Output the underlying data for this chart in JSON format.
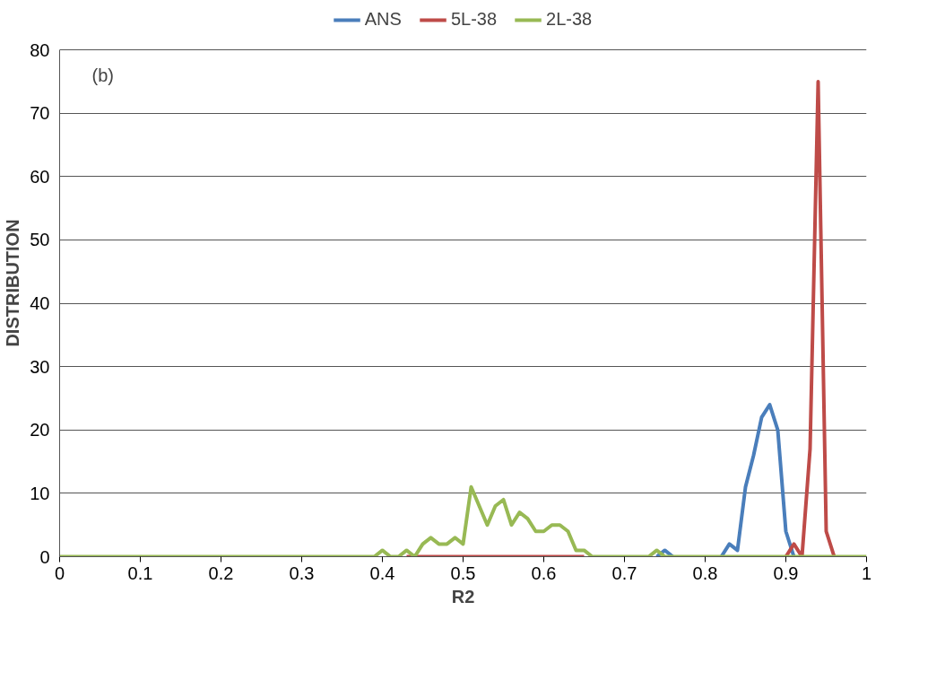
{
  "chart_data": {
    "type": "line",
    "xlabel": "R2",
    "ylabel": "DISTRIBUTION",
    "annotations": [
      "(b)"
    ],
    "x": [
      0,
      0.01,
      0.02,
      0.03,
      0.04,
      0.05,
      0.06,
      0.07,
      0.08,
      0.09,
      0.1,
      0.11,
      0.12,
      0.13,
      0.14,
      0.15,
      0.16,
      0.17,
      0.18,
      0.19,
      0.2,
      0.21,
      0.22,
      0.23,
      0.24,
      0.25,
      0.26,
      0.27,
      0.28,
      0.29,
      0.3,
      0.31,
      0.32,
      0.33,
      0.34,
      0.35,
      0.36,
      0.37,
      0.38,
      0.39,
      0.4,
      0.41,
      0.42,
      0.43,
      0.44,
      0.45,
      0.46,
      0.47,
      0.48,
      0.49,
      0.5,
      0.51,
      0.52,
      0.53,
      0.54,
      0.55,
      0.56,
      0.57,
      0.58,
      0.59,
      0.6,
      0.61,
      0.62,
      0.63,
      0.64,
      0.65,
      0.66,
      0.67,
      0.68,
      0.69,
      0.7,
      0.71,
      0.72,
      0.73,
      0.74,
      0.75,
      0.76,
      0.77,
      0.78,
      0.79,
      0.8,
      0.81,
      0.82,
      0.83,
      0.84,
      0.85,
      0.86,
      0.87,
      0.88,
      0.89,
      0.9,
      0.91,
      0.92,
      0.93,
      0.94,
      0.95,
      0.96,
      0.97,
      0.98,
      0.99,
      1
    ],
    "series": [
      {
        "name": "ANS",
        "color": "#4a7ebb",
        "values": [
          null,
          null,
          null,
          null,
          null,
          null,
          null,
          null,
          null,
          null,
          null,
          null,
          null,
          null,
          null,
          null,
          null,
          null,
          null,
          null,
          null,
          null,
          null,
          null,
          null,
          null,
          null,
          null,
          null,
          null,
          null,
          null,
          null,
          null,
          null,
          null,
          null,
          null,
          null,
          null,
          null,
          null,
          null,
          null,
          null,
          null,
          null,
          null,
          null,
          null,
          null,
          null,
          null,
          null,
          null,
          null,
          null,
          null,
          null,
          null,
          null,
          null,
          null,
          null,
          null,
          null,
          null,
          null,
          null,
          null,
          null,
          null,
          null,
          null,
          0,
          1,
          0,
          null,
          null,
          null,
          null,
          null,
          0,
          2,
          1,
          11,
          16,
          22,
          24,
          20,
          4,
          0,
          null,
          null,
          null,
          null,
          null,
          null,
          null,
          null,
          null
        ]
      },
      {
        "name": "5L-38",
        "color": "#be4b48",
        "values": [
          null,
          null,
          null,
          null,
          null,
          null,
          null,
          null,
          null,
          null,
          null,
          null,
          null,
          null,
          null,
          null,
          null,
          null,
          null,
          null,
          null,
          null,
          null,
          null,
          null,
          null,
          null,
          null,
          null,
          null,
          null,
          null,
          null,
          null,
          null,
          null,
          null,
          null,
          null,
          null,
          null,
          null,
          null,
          0,
          0,
          0,
          0,
          0,
          0,
          0,
          0,
          0,
          0,
          0,
          0,
          0,
          0,
          0,
          0,
          0,
          0,
          0,
          0,
          0,
          0,
          0,
          null,
          null,
          null,
          null,
          null,
          null,
          null,
          null,
          null,
          null,
          null,
          null,
          null,
          null,
          null,
          null,
          null,
          null,
          null,
          null,
          null,
          null,
          null,
          null,
          0,
          2,
          0,
          17,
          75,
          4,
          0,
          null,
          null,
          null,
          null
        ]
      },
      {
        "name": "2L-38",
        "color": "#98b954",
        "values": [
          0,
          0,
          0,
          0,
          0,
          0,
          0,
          0,
          0,
          0,
          0,
          0,
          0,
          0,
          0,
          0,
          0,
          0,
          0,
          0,
          0,
          0,
          0,
          0,
          0,
          0,
          0,
          0,
          0,
          0,
          0,
          0,
          0,
          0,
          0,
          0,
          0,
          0,
          0,
          0,
          1,
          0,
          0,
          1,
          0,
          2,
          3,
          2,
          2,
          3,
          2,
          11,
          8,
          5,
          8,
          9,
          5,
          7,
          6,
          4,
          4,
          5,
          5,
          4,
          1,
          1,
          0,
          0,
          0,
          0,
          0,
          0,
          0,
          0,
          1,
          0,
          0,
          0,
          0,
          0,
          0,
          0,
          0,
          0,
          0,
          0,
          0,
          0,
          0,
          0,
          0,
          0,
          0,
          0,
          0,
          0,
          0,
          0,
          0,
          0,
          0
        ]
      }
    ],
    "xlim": [
      0,
      1
    ],
    "xticks": [
      0,
      0.1,
      0.2,
      0.3,
      0.4,
      0.5,
      0.6,
      0.7,
      0.8,
      0.9,
      1
    ],
    "ylim": [
      0,
      80
    ],
    "yticks": [
      0,
      10,
      20,
      30,
      40,
      50,
      60,
      70,
      80
    ],
    "grid": "y",
    "legend": "top",
    "marker": "none",
    "line_style": "solid"
  }
}
